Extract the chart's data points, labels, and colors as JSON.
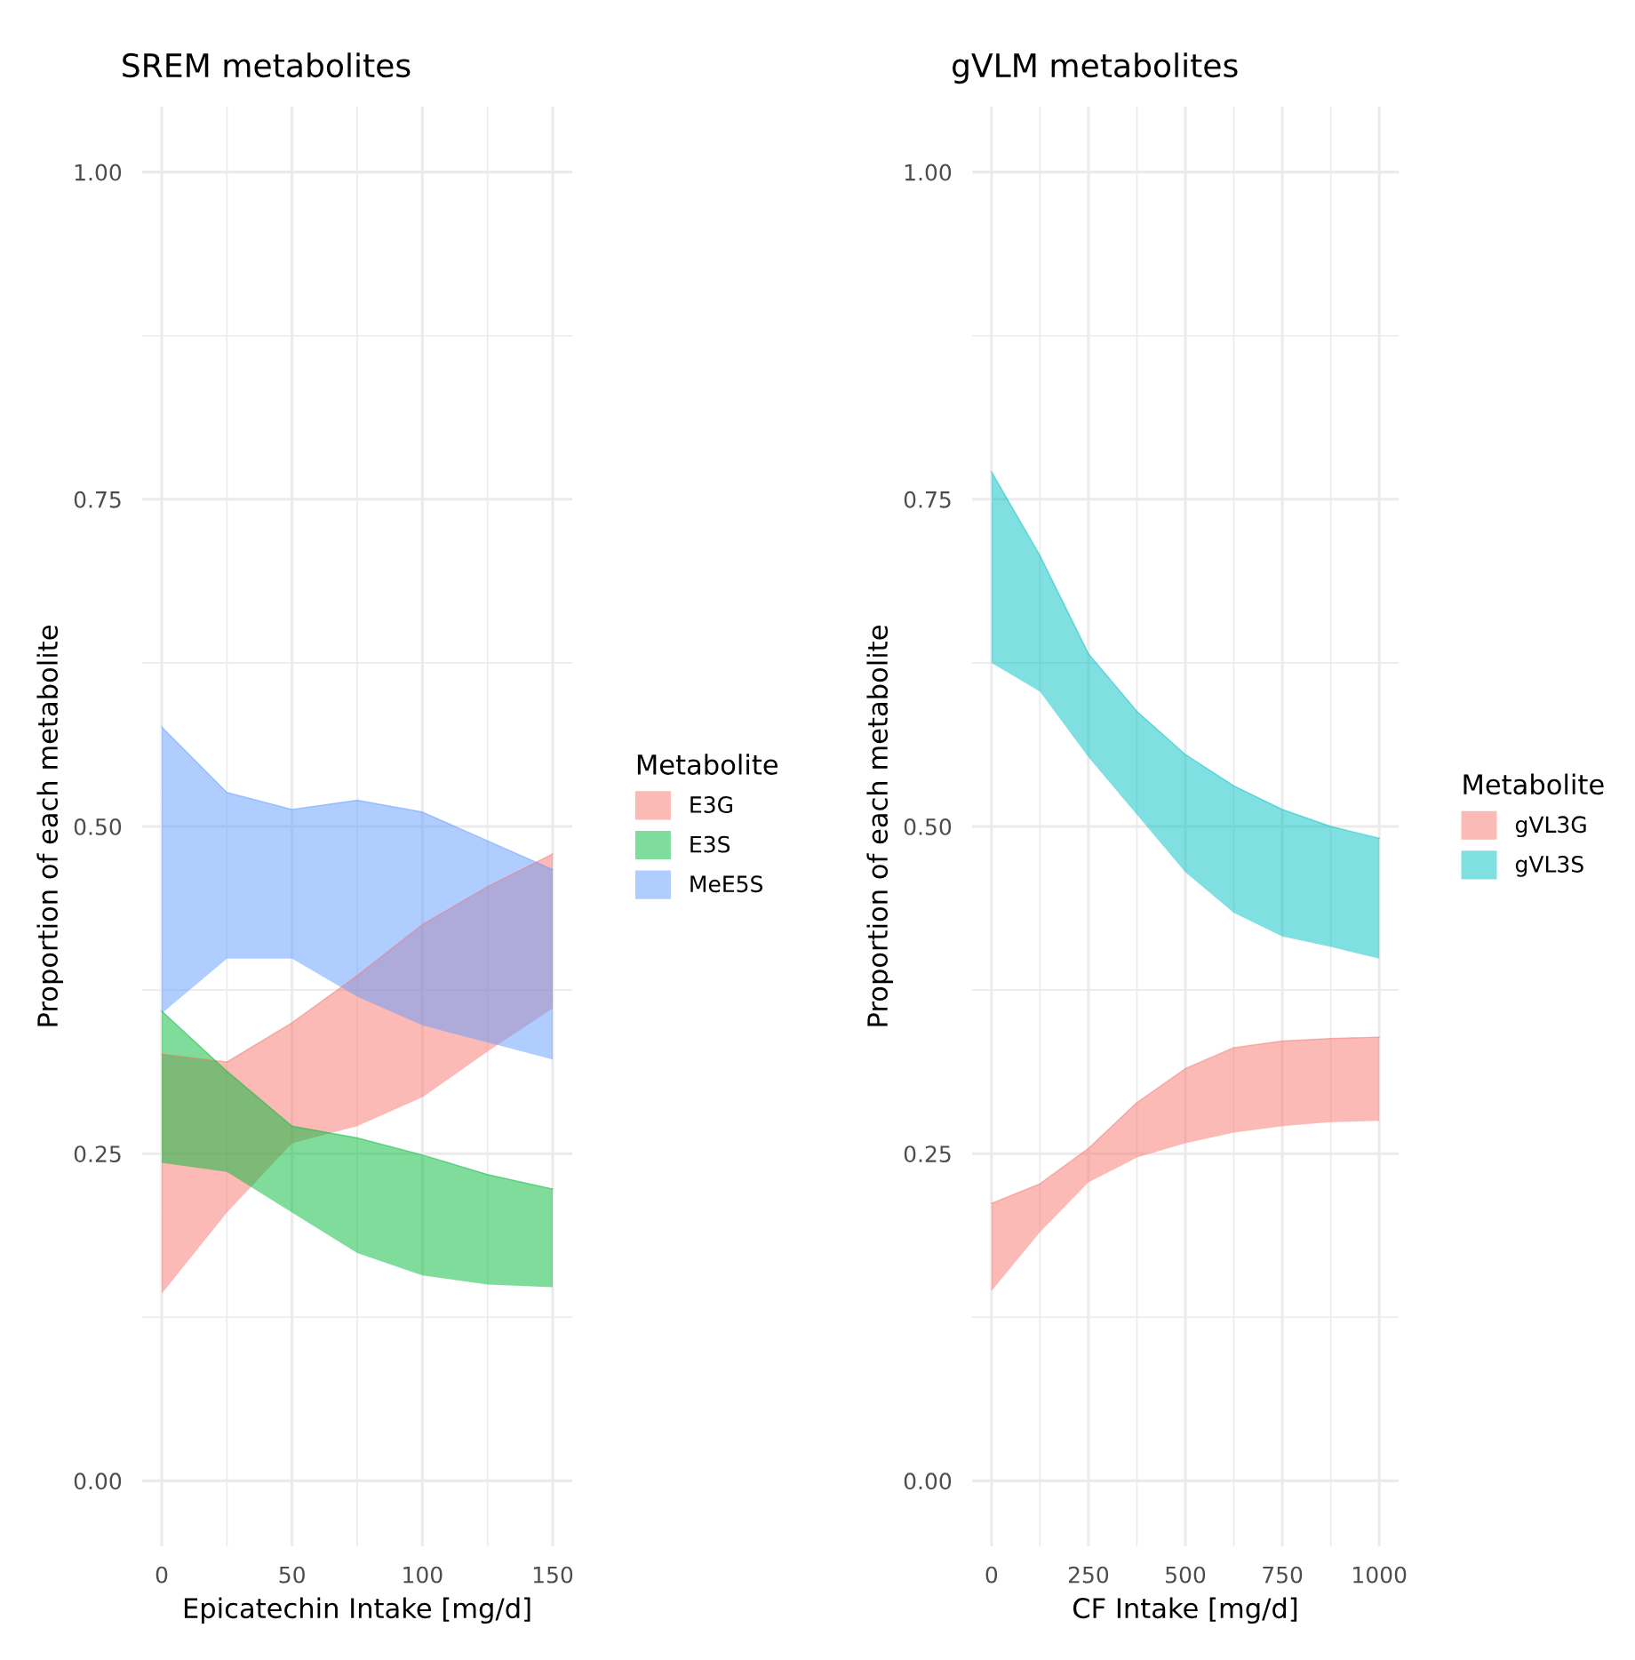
{
  "chart_data": [
    {
      "type": "line",
      "title": "SREM metabolites",
      "xlabel": "Epicatechin Intake [mg/d]",
      "ylabel": "Proportion of each metabolite",
      "legend_title": "Metabolite",
      "legend": "right",
      "grid": true,
      "x": [
        0,
        25,
        50,
        75,
        100,
        125,
        150
      ],
      "xlim": [
        -7.5,
        157.5
      ],
      "xticks": [
        0,
        50,
        100,
        150
      ],
      "ylim": [
        -0.05,
        1.05
      ],
      "yticks": [
        {
          "value": 0,
          "label": "0.00"
        },
        {
          "value": 0.25,
          "label": "0.25"
        },
        {
          "value": 0.5,
          "label": "0.50"
        },
        {
          "value": 0.75,
          "label": "0.75"
        },
        {
          "value": 1,
          "label": "1.00"
        }
      ],
      "series": [
        {
          "name": "E3G",
          "color": "#f8766d",
          "values": [
            0.326,
            0.32,
            0.35,
            0.386,
            0.425,
            0.454,
            0.479
          ],
          "lower": [
            0.143,
            0.205,
            0.258,
            0.271,
            0.293,
            0.328,
            0.361
          ],
          "upper": [
            0.326,
            0.32,
            0.35,
            0.386,
            0.425,
            0.454,
            0.479
          ]
        },
        {
          "name": "E3S",
          "color": "#00ba38",
          "values": [
            0.359,
            0.313,
            0.271,
            0.262,
            0.249,
            0.234,
            0.223
          ],
          "lower": [
            0.243,
            0.236,
            0.205,
            0.174,
            0.157,
            0.15,
            0.148
          ],
          "upper": [
            0.359,
            0.313,
            0.271,
            0.262,
            0.249,
            0.234,
            0.223
          ]
        },
        {
          "name": "MeE5S",
          "color": "#619cff",
          "values": [
            0.576,
            0.526,
            0.513,
            0.52,
            0.511,
            0.489,
            0.467
          ],
          "lower": [
            0.357,
            0.399,
            0.399,
            0.37,
            0.348,
            0.335,
            0.322
          ],
          "upper": [
            0.576,
            0.526,
            0.513,
            0.52,
            0.511,
            0.489,
            0.467
          ]
        }
      ]
    },
    {
      "type": "line",
      "title": "gVLM metabolites",
      "xlabel": "CF Intake [mg/d]",
      "ylabel": "Proportion of each metabolite",
      "legend_title": "Metabolite",
      "legend": "right",
      "grid": true,
      "x": [
        0,
        125,
        250,
        375,
        500,
        625,
        750,
        875,
        1000
      ],
      "xlim": [
        -50,
        1050
      ],
      "xticks": [
        0,
        250,
        500,
        750,
        1000
      ],
      "ylim": [
        -0.05,
        1.05
      ],
      "yticks": [
        {
          "value": 0,
          "label": "0.00"
        },
        {
          "value": 0.25,
          "label": "0.25"
        },
        {
          "value": 0.5,
          "label": "0.50"
        },
        {
          "value": 0.75,
          "label": "0.75"
        },
        {
          "value": 1,
          "label": "1.00"
        }
      ],
      "series": [
        {
          "name": "gVL3G",
          "color": "#f8766d",
          "values": [
            0.212,
            0.227,
            0.254,
            0.289,
            0.315,
            0.331,
            0.336,
            0.338,
            0.339
          ],
          "lower": [
            0.145,
            0.19,
            0.228,
            0.247,
            0.258,
            0.266,
            0.271,
            0.274,
            0.275
          ],
          "upper": [
            0.212,
            0.227,
            0.254,
            0.289,
            0.315,
            0.331,
            0.336,
            0.338,
            0.339
          ]
        },
        {
          "name": "gVL3S",
          "color": "#00bfc4",
          "values": [
            0.771,
            0.707,
            0.632,
            0.588,
            0.555,
            0.531,
            0.513,
            0.5,
            0.491
          ],
          "lower": [
            0.625,
            0.603,
            0.553,
            0.509,
            0.465,
            0.434,
            0.416,
            0.408,
            0.399
          ],
          "upper": [
            0.771,
            0.707,
            0.632,
            0.588,
            0.555,
            0.531,
            0.513,
            0.5,
            0.491
          ]
        }
      ]
    }
  ]
}
